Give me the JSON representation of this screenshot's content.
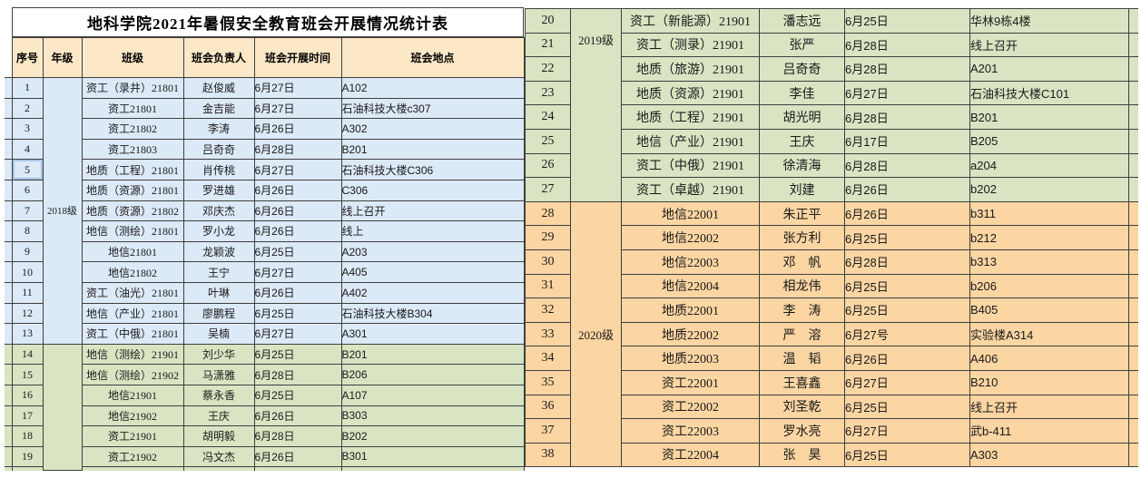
{
  "title": "地科学院2021年暑假安全教育班会开展情况统计表",
  "columns": [
    "序号",
    "年级",
    "班级",
    "班会负责人",
    "班会开展时间",
    "班会地点"
  ],
  "group_colors": {
    "2018": "#dce9f7",
    "2019": "#d8e4c2",
    "2020": "#fbd5a2"
  },
  "header_bg": "#fce8c6",
  "border_color": "#3f3f3f",
  "selected_row_no": "5",
  "rows": [
    {
      "no": "1",
      "group": "2018",
      "class": "资工（录井）21801",
      "leader": "赵俊威",
      "date": "6月27日",
      "place": "A102"
    },
    {
      "no": "2",
      "group": "2018",
      "class": "资工21801",
      "leader": "金吉能",
      "date": "6月27日",
      "place": "石油科技大楼c307"
    },
    {
      "no": "3",
      "group": "2018",
      "class": "资工21802",
      "leader": "李涛",
      "date": "6月26日",
      "place": "A302"
    },
    {
      "no": "4",
      "group": "2018",
      "class": "资工21803",
      "leader": "吕奇奇",
      "date": "6月28日",
      "place": "B201"
    },
    {
      "no": "5",
      "group": "2018",
      "class": "地质（工程）21801",
      "leader": "肖传桃",
      "date": "6月27日",
      "place": "石油科技大楼C306"
    },
    {
      "no": "6",
      "group": "2018",
      "class": "地质（资源）21801",
      "leader": "罗进雄",
      "date": "6月26日",
      "place": "C306"
    },
    {
      "no": "7",
      "group": "2018",
      "class": "地质（资源）21802",
      "leader": "邓庆杰",
      "date": "6月26日",
      "place": "线上召开"
    },
    {
      "no": "8",
      "group": "2018",
      "class": "地信（测绘）21801",
      "leader": "罗小龙",
      "date": "6月26日",
      "place": "线上"
    },
    {
      "no": "9",
      "group": "2018",
      "class": "地信21801",
      "leader": "龙颖波",
      "date": "6月25日",
      "place": "A203"
    },
    {
      "no": "10",
      "group": "2018",
      "class": "地信21802",
      "leader": "王宁",
      "date": "6月27日",
      "place": "A405"
    },
    {
      "no": "11",
      "group": "2018",
      "class": "资工（油光）21801",
      "leader": "叶琳",
      "date": "6月26日",
      "place": "A402"
    },
    {
      "no": "12",
      "group": "2018",
      "class": "地信（产业）21801",
      "leader": "廖鹏程",
      "date": "6月25日",
      "place": "石油科技大楼B304"
    },
    {
      "no": "13",
      "group": "2018",
      "class": "资工（中俄）21801",
      "leader": "吴楠",
      "date": "6月27日",
      "place": "A301"
    },
    {
      "no": "14",
      "group": "2019",
      "class": "地信（测绘）21901",
      "leader": "刘少华",
      "date": "6月25日",
      "place": "B201"
    },
    {
      "no": "15",
      "group": "2019",
      "class": "地信（测绘）21902",
      "leader": "马潇雅",
      "date": "6月28日",
      "place": "B206"
    },
    {
      "no": "16",
      "group": "2019",
      "class": "地信21901",
      "leader": "蔡永香",
      "date": "6月25日",
      "place": "A107"
    },
    {
      "no": "17",
      "group": "2019",
      "class": "地信21902",
      "leader": "王庆",
      "date": "6月26日",
      "place": "B303"
    },
    {
      "no": "18",
      "group": "2019",
      "class": "资工21901",
      "leader": "胡明毅",
      "date": "6月28日",
      "place": "B202"
    },
    {
      "no": "19",
      "group": "2019",
      "class": "资工21902",
      "leader": "冯文杰",
      "date": "6月26日",
      "place": "B301"
    },
    {
      "no": "20",
      "group": "2019",
      "class": "资工（新能源）21901",
      "leader": "潘志远",
      "date": "6月25日",
      "place": "华林9栋4楼"
    },
    {
      "no": "21",
      "group": "2019",
      "class": "资工（测录）21901",
      "leader": "张严",
      "date": "6月28日",
      "place": "线上召开"
    },
    {
      "no": "22",
      "group": "2019",
      "class": "地质（旅游）21901",
      "leader": "吕奇奇",
      "date": "6月28日",
      "place": "A201"
    },
    {
      "no": "23",
      "group": "2019",
      "class": "地质（资源）21901",
      "leader": "李佳",
      "date": "6月27日",
      "place": "石油科技大楼C101"
    },
    {
      "no": "24",
      "group": "2019",
      "class": "地质（工程）21901",
      "leader": "胡光明",
      "date": "6月28日",
      "place": "B201"
    },
    {
      "no": "25",
      "group": "2019",
      "class": "地信（产业）21901",
      "leader": "王庆",
      "date": "6月17日",
      "place": "B205"
    },
    {
      "no": "26",
      "group": "2019",
      "class": "资工（中俄）21901",
      "leader": "徐清海",
      "date": "6月28日",
      "place": "a204"
    },
    {
      "no": "27",
      "group": "2019",
      "class": "资工（卓越）21901",
      "leader": "刘建",
      "date": "6月26日",
      "place": "b202"
    },
    {
      "no": "28",
      "group": "2020",
      "class": "地信22001",
      "leader": "朱正平",
      "date": "6月26日",
      "place": "b311"
    },
    {
      "no": "29",
      "group": "2020",
      "class": "地信22002",
      "leader": "张方利",
      "date": "6月25日",
      "place": "b212"
    },
    {
      "no": "30",
      "group": "2020",
      "class": "地信22003",
      "leader": "邓　帆",
      "date": "6月28日",
      "place": "b313"
    },
    {
      "no": "31",
      "group": "2020",
      "class": "地信22004",
      "leader": "相龙伟",
      "date": "6月25日",
      "place": "b206"
    },
    {
      "no": "32",
      "group": "2020",
      "class": "地质22001",
      "leader": "李　涛",
      "date": "6月25日",
      "place": "B405"
    },
    {
      "no": "33",
      "group": "2020",
      "class": "地质22002",
      "leader": "严　溶",
      "date": "6月27号",
      "place": "实验楼A314"
    },
    {
      "no": "34",
      "group": "2020",
      "class": "地质22003",
      "leader": "温　韬",
      "date": "6月26日",
      "place": "A406"
    },
    {
      "no": "35",
      "group": "2020",
      "class": "资工22001",
      "leader": "王喜鑫",
      "date": "6月27日",
      "place": "B210"
    },
    {
      "no": "36",
      "group": "2020",
      "class": "资工22002",
      "leader": "刘圣乾",
      "date": "6月25日",
      "place": "线上召开"
    },
    {
      "no": "37",
      "group": "2020",
      "class": "资工22003",
      "leader": "罗水亮",
      "date": "6月27日",
      "place": "武b-411"
    },
    {
      "no": "38",
      "group": "2020",
      "class": "资工22004",
      "leader": "张　昊",
      "date": "6月25日",
      "place": "A303"
    }
  ],
  "left_table": {
    "row_start": 0,
    "row_count": 19,
    "merges": [
      {
        "start": 0,
        "span": 13,
        "label": "2018级"
      },
      {
        "start": 13,
        "span": 6,
        "label": ""
      }
    ]
  },
  "right_table": {
    "row_start": 19,
    "row_count": 19,
    "merges": [
      {
        "start": 19,
        "span": 8,
        "label": "2019级",
        "align_top": true
      },
      {
        "start": 27,
        "span": 11,
        "label": "2020级"
      }
    ]
  }
}
